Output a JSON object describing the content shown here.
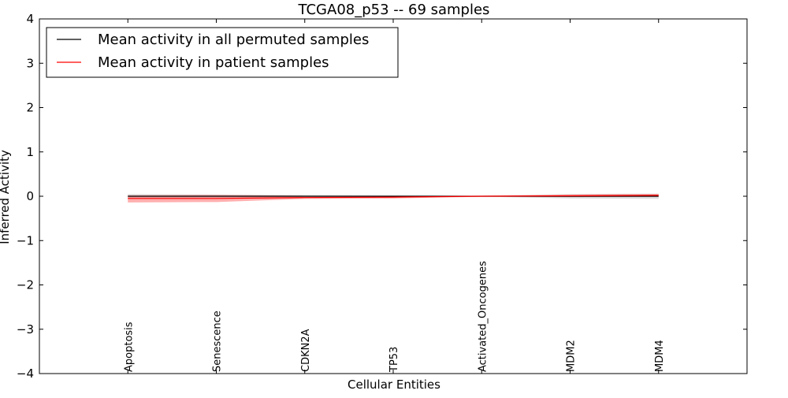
{
  "chart_data": {
    "type": "line",
    "title": "TCGA08_p53 -- 69 samples",
    "xlabel": "Cellular Entities",
    "ylabel": "Inferred Activity",
    "categories": [
      "Apoptosis",
      "Senescence",
      "CDKN2A",
      "TP53",
      "Activated_Oncogenes",
      "MDM2",
      "MDM4"
    ],
    "xlim": [
      -1,
      7
    ],
    "ylim": [
      -4,
      4
    ],
    "yticks": [
      -4,
      -3,
      -2,
      -1,
      0,
      1,
      2,
      3,
      4
    ],
    "ytick_labels": [
      "−4",
      "−3",
      "−2",
      "−1",
      "0",
      "1",
      "2",
      "3",
      "4"
    ],
    "grid": false,
    "legend_position": "upper-left",
    "series": [
      {
        "name": "Mean activity in all permuted samples",
        "color": "#000000",
        "values": [
          0.0,
          0.0,
          0.0,
          0.0,
          0.0,
          0.0,
          0.0
        ],
        "band_lower": [
          -0.05,
          -0.04,
          -0.03,
          -0.02,
          -0.01,
          -0.05,
          -0.06
        ],
        "band_upper": [
          0.05,
          0.04,
          0.03,
          0.02,
          0.01,
          0.05,
          0.06
        ],
        "band_color": "#c8c8c8"
      },
      {
        "name": "Mean activity in patient samples",
        "color": "#ff0000",
        "values": [
          -0.05,
          -0.05,
          -0.03,
          -0.02,
          0.0,
          0.01,
          0.02
        ],
        "band_lower": [
          -0.14,
          -0.13,
          -0.06,
          -0.05,
          -0.01,
          -0.02,
          -0.01
        ],
        "band_upper": [
          0.02,
          0.03,
          0.01,
          0.0,
          0.01,
          0.04,
          0.05
        ],
        "band_color": "#ff6e6e"
      }
    ]
  }
}
